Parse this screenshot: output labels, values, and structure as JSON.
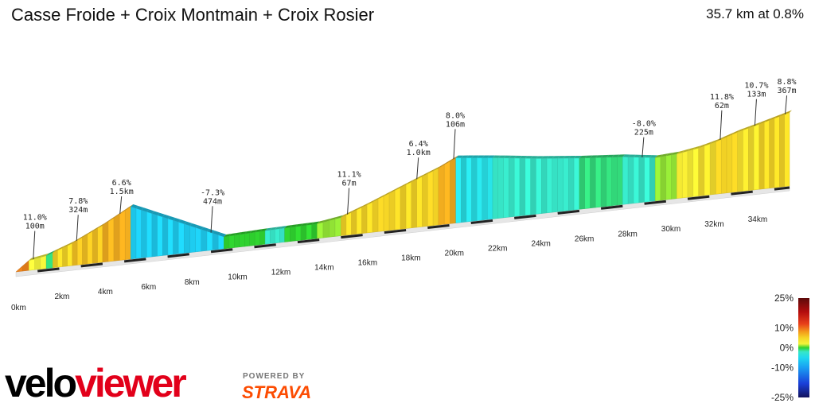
{
  "header": {
    "title": "Casse Froide + Croix Montmain + Croix Rosier",
    "summary": "35.7 km at 0.8%"
  },
  "chart_data": {
    "type": "area",
    "distance_km": 35.7,
    "xlabel": "",
    "ylabel": "",
    "x_ticks": [
      "0km",
      "2km",
      "4km",
      "6km",
      "8km",
      "10km",
      "12km",
      "14km",
      "16km",
      "18km",
      "20km",
      "22km",
      "24km",
      "26km",
      "28km",
      "30km",
      "32km",
      "34km"
    ],
    "profile": [
      {
        "km": 0.0,
        "elev": 0
      },
      {
        "km": 0.6,
        "elev": 62
      },
      {
        "km": 1.4,
        "elev": 80
      },
      {
        "km": 2.6,
        "elev": 140
      },
      {
        "km": 4.0,
        "elev": 232
      },
      {
        "km": 5.3,
        "elev": 330
      },
      {
        "km": 7.5,
        "elev": 200
      },
      {
        "km": 9.6,
        "elev": 75
      },
      {
        "km": 11.5,
        "elev": 85
      },
      {
        "km": 13.9,
        "elev": 92
      },
      {
        "km": 15.0,
        "elev": 115
      },
      {
        "km": 16.2,
        "elev": 176
      },
      {
        "km": 18.0,
        "elev": 276
      },
      {
        "km": 19.5,
        "elev": 357
      },
      {
        "km": 20.3,
        "elev": 410
      },
      {
        "km": 22.0,
        "elev": 385
      },
      {
        "km": 24.0,
        "elev": 350
      },
      {
        "km": 26.0,
        "elev": 322
      },
      {
        "km": 28.0,
        "elev": 300
      },
      {
        "km": 29.5,
        "elev": 272
      },
      {
        "km": 30.5,
        "elev": 280
      },
      {
        "km": 31.5,
        "elev": 302
      },
      {
        "km": 32.3,
        "elev": 330
      },
      {
        "km": 33.3,
        "elev": 375
      },
      {
        "km": 34.3,
        "elev": 410
      },
      {
        "km": 35.7,
        "elev": 462
      }
    ],
    "gradient_segments": [
      {
        "from": 0.0,
        "to": 0.6,
        "grade": 9
      },
      {
        "from": 0.6,
        "to": 1.4,
        "grade": 2
      },
      {
        "from": 1.4,
        "to": 1.7,
        "grade": -1
      },
      {
        "from": 1.7,
        "to": 2.6,
        "grade": 5
      },
      {
        "from": 2.6,
        "to": 4.0,
        "grade": 6
      },
      {
        "from": 4.0,
        "to": 5.3,
        "grade": 7
      },
      {
        "from": 5.3,
        "to": 7.5,
        "grade": -6
      },
      {
        "from": 7.5,
        "to": 9.6,
        "grade": -6
      },
      {
        "from": 9.6,
        "to": 11.5,
        "grade": 0
      },
      {
        "from": 11.5,
        "to": 12.4,
        "grade": -2
      },
      {
        "from": 12.4,
        "to": 13.9,
        "grade": 0
      },
      {
        "from": 13.9,
        "to": 15.0,
        "grade": 1
      },
      {
        "from": 15.0,
        "to": 16.2,
        "grade": 5
      },
      {
        "from": 16.2,
        "to": 18.0,
        "grade": 5
      },
      {
        "from": 18.0,
        "to": 19.5,
        "grade": 5
      },
      {
        "from": 19.5,
        "to": 20.3,
        "grade": 7
      },
      {
        "from": 20.3,
        "to": 22.0,
        "grade": -4
      },
      {
        "from": 22.0,
        "to": 24.0,
        "grade": -2
      },
      {
        "from": 24.0,
        "to": 26.0,
        "grade": -2
      },
      {
        "from": 26.0,
        "to": 28.0,
        "grade": -1
      },
      {
        "from": 28.0,
        "to": 29.5,
        "grade": -2
      },
      {
        "from": 29.5,
        "to": 30.5,
        "grade": 1
      },
      {
        "from": 30.5,
        "to": 31.5,
        "grade": 3
      },
      {
        "from": 31.5,
        "to": 32.3,
        "grade": 4
      },
      {
        "from": 32.3,
        "to": 33.3,
        "grade": 5
      },
      {
        "from": 33.3,
        "to": 34.3,
        "grade": 4
      },
      {
        "from": 34.3,
        "to": 35.7,
        "grade": 5
      }
    ],
    "annotations": [
      {
        "km": 0.8,
        "grade": "11.0%",
        "length": "100m"
      },
      {
        "km": 2.8,
        "grade": "7.8%",
        "length": "324m"
      },
      {
        "km": 4.8,
        "grade": "6.6%",
        "length": "1.5km"
      },
      {
        "km": 9.0,
        "grade": "-7.3%",
        "length": "474m"
      },
      {
        "km": 15.3,
        "grade": "11.1%",
        "length": "67m"
      },
      {
        "km": 18.5,
        "grade": "6.4%",
        "length": "1.0km"
      },
      {
        "km": 20.2,
        "grade": "8.0%",
        "length": "106m"
      },
      {
        "km": 28.9,
        "grade": "-8.0%",
        "length": "225m"
      },
      {
        "km": 32.5,
        "grade": "11.8%",
        "length": "62m"
      },
      {
        "km": 34.1,
        "grade": "10.7%",
        "length": "133m"
      },
      {
        "km": 35.5,
        "grade": "8.8%",
        "length": "367m"
      }
    ],
    "color_scale": {
      "labels": [
        "25%",
        "10%",
        "0%",
        "-10%",
        "-25%"
      ],
      "stops": [
        {
          "grade": 25,
          "color": "#5c0a0a"
        },
        {
          "grade": 18,
          "color": "#b40d0d"
        },
        {
          "grade": 12,
          "color": "#e8401a"
        },
        {
          "grade": 8,
          "color": "#f39c1b"
        },
        {
          "grade": 5,
          "color": "#f5d526"
        },
        {
          "grade": 2,
          "color": "#f4f43a"
        },
        {
          "grade": 0,
          "color": "#2fd12f"
        },
        {
          "grade": -2,
          "color": "#37e6c8"
        },
        {
          "grade": -5,
          "color": "#1fd7ef"
        },
        {
          "grade": -10,
          "color": "#1a9ef2"
        },
        {
          "grade": -18,
          "color": "#1a3fd9"
        },
        {
          "grade": -25,
          "color": "#12125c"
        }
      ]
    }
  },
  "branding": {
    "logo_part1": "velo",
    "logo_part2": "viewer",
    "powered_by": "POWERED BY",
    "strava": "STRAVA"
  }
}
